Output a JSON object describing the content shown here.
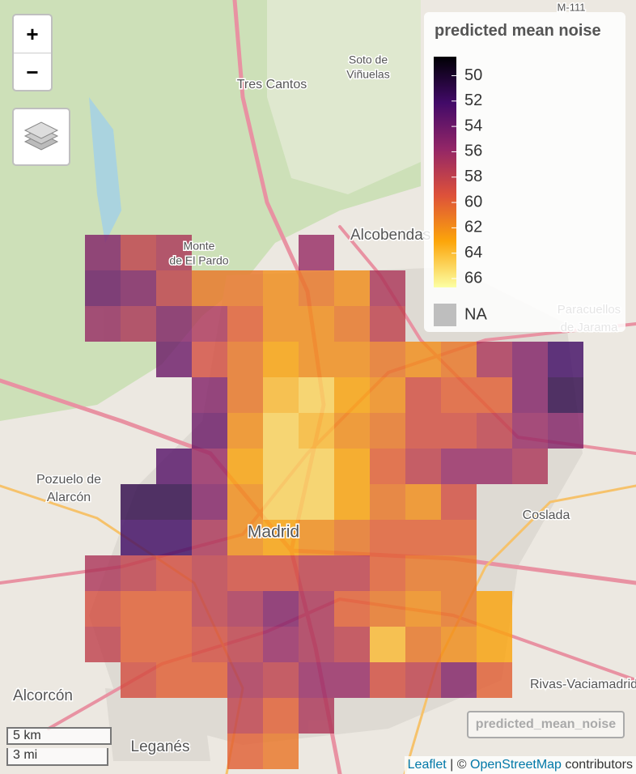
{
  "zoom": {
    "in": "+",
    "out": "−"
  },
  "legend": {
    "title": "predicted mean noise",
    "ticks": [
      50,
      52,
      54,
      56,
      58,
      60,
      62,
      64,
      66
    ],
    "lim": [
      48.5,
      66.7
    ],
    "na_label": "NA"
  },
  "layer_control": {
    "label": "predicted_mean_noise"
  },
  "scale": {
    "metric": "5 km",
    "imperial": "3 mi"
  },
  "attribution": {
    "leaflet": "Leaflet",
    "separator": "| ©",
    "osm": "OpenStreetMap",
    "suffix": "contributors"
  },
  "places": [
    {
      "label": "Tres Cantos"
    },
    {
      "label": "Soto de"
    },
    {
      "label": "Viñuelas"
    },
    {
      "label": "Monte"
    },
    {
      "label": "de El Pardo"
    },
    {
      "label": "Alcobendas"
    },
    {
      "label": "Madrid"
    },
    {
      "label": "Pozuelo de"
    },
    {
      "label": "Alarcón"
    },
    {
      "label": "Coslada"
    },
    {
      "label": "Alcorcón"
    },
    {
      "label": "Leganés"
    },
    {
      "label": "Rivas-Vaciamadrid"
    },
    {
      "label": "Paracuellos"
    },
    {
      "label": "de Jarama"
    },
    {
      "label": "M-111"
    }
  ],
  "noise_grid": {
    "rows": [
      [
        55,
        58,
        57,
        null,
        null,
        null,
        56,
        null,
        null,
        null,
        null,
        null,
        null,
        null
      ],
      [
        54,
        55,
        58,
        61,
        61,
        62,
        61,
        62,
        57,
        null,
        null,
        null,
        null,
        null
      ],
      [
        56,
        57,
        55,
        57,
        60,
        62,
        62,
        61,
        58,
        null,
        null,
        null,
        null,
        null
      ],
      [
        null,
        null,
        54,
        59,
        61,
        63,
        62,
        62,
        61,
        62,
        61,
        57,
        55,
        52
      ],
      [
        null,
        null,
        null,
        55,
        61,
        64,
        65,
        63,
        62,
        59,
        60,
        60,
        55,
        51
      ],
      [
        null,
        null,
        null,
        54,
        62,
        65,
        64,
        62,
        61,
        59,
        59,
        58,
        56,
        55
      ],
      [
        null,
        null,
        53,
        56,
        63,
        65,
        65,
        63,
        60,
        58,
        56,
        56,
        57,
        null
      ],
      [
        null,
        51,
        51,
        55,
        62,
        65,
        65,
        63,
        61,
        62,
        59,
        null,
        null,
        null
      ],
      [
        null,
        52,
        52,
        57,
        62,
        63,
        62,
        61,
        60,
        60,
        60,
        null,
        null,
        null
      ],
      [
        57,
        58,
        59,
        58,
        59,
        59,
        58,
        58,
        60,
        61,
        61,
        null,
        null,
        null
      ],
      [
        59,
        60,
        60,
        58,
        57,
        55,
        57,
        60,
        61,
        62,
        61,
        63,
        null,
        null
      ],
      [
        58,
        60,
        60,
        59,
        58,
        56,
        57,
        58,
        64,
        61,
        62,
        63,
        null,
        null
      ],
      [
        null,
        59,
        60,
        60,
        57,
        58,
        56,
        56,
        59,
        58,
        55,
        60,
        null,
        null
      ],
      [
        null,
        null,
        null,
        null,
        58,
        60,
        57,
        null,
        null,
        null,
        null,
        null,
        null,
        null
      ],
      [
        null,
        null,
        null,
        null,
        60,
        61,
        null,
        null,
        null,
        null,
        null,
        null,
        null,
        null
      ]
    ]
  }
}
